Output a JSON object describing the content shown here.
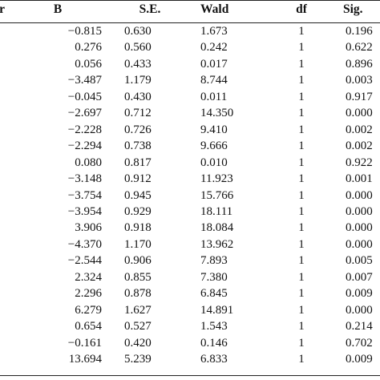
{
  "table": {
    "headers": {
      "variable": "r",
      "b": "B",
      "se": "S.E.",
      "wald": "Wald",
      "df": "df",
      "sig": "Sig."
    },
    "rows": [
      {
        "b": "−0.815",
        "se": "0.630",
        "wald": "1.673",
        "df": "1",
        "sig": "0.196"
      },
      {
        "b": "0.276",
        "se": "0.560",
        "wald": "0.242",
        "df": "1",
        "sig": "0.622"
      },
      {
        "b": "0.056",
        "se": "0.433",
        "wald": "0.017",
        "df": "1",
        "sig": "0.896"
      },
      {
        "b": "−3.487",
        "se": "1.179",
        "wald": "8.744",
        "df": "1",
        "sig": "0.003"
      },
      {
        "b": "−0.045",
        "se": "0.430",
        "wald": "0.011",
        "df": "1",
        "sig": "0.917"
      },
      {
        "b": "−2.697",
        "se": "0.712",
        "wald": "14.350",
        "df": "1",
        "sig": "0.000"
      },
      {
        "b": "−2.228",
        "se": "0.726",
        "wald": "9.410",
        "df": "1",
        "sig": "0.002"
      },
      {
        "b": "−2.294",
        "se": "0.738",
        "wald": "9.666",
        "df": "1",
        "sig": "0.002"
      },
      {
        "b": "0.080",
        "se": "0.817",
        "wald": "0.010",
        "df": "1",
        "sig": "0.922"
      },
      {
        "b": "−3.148",
        "se": "0.912",
        "wald": "11.923",
        "df": "1",
        "sig": "0.001"
      },
      {
        "b": "−3.754",
        "se": "0.945",
        "wald": "15.766",
        "df": "1",
        "sig": "0.000"
      },
      {
        "b": "−3.954",
        "se": "0.929",
        "wald": "18.111",
        "df": "1",
        "sig": "0.000"
      },
      {
        "b": "3.906",
        "se": "0.918",
        "wald": "18.084",
        "df": "1",
        "sig": "0.000"
      },
      {
        "b": "−4.370",
        "se": "1.170",
        "wald": "13.962",
        "df": "1",
        "sig": "0.000"
      },
      {
        "b": "−2.544",
        "se": "0.906",
        "wald": "7.893",
        "df": "1",
        "sig": "0.005"
      },
      {
        "b": "2.324",
        "se": "0.855",
        "wald": "7.380",
        "df": "1",
        "sig": "0.007"
      },
      {
        "b": "2.296",
        "se": "0.878",
        "wald": "6.845",
        "df": "1",
        "sig": "0.009"
      },
      {
        "b": "6.279",
        "se": "1.627",
        "wald": "14.891",
        "df": "1",
        "sig": "0.000"
      },
      {
        "b": "0.654",
        "se": "0.527",
        "wald": "1.543",
        "df": "1",
        "sig": "0.214"
      },
      {
        "b": "−0.161",
        "se": "0.420",
        "wald": "0.146",
        "df": "1",
        "sig": "0.702"
      },
      {
        "b": "13.694",
        "se": "5.239",
        "wald": "6.833",
        "df": "1",
        "sig": "0.009"
      }
    ]
  }
}
